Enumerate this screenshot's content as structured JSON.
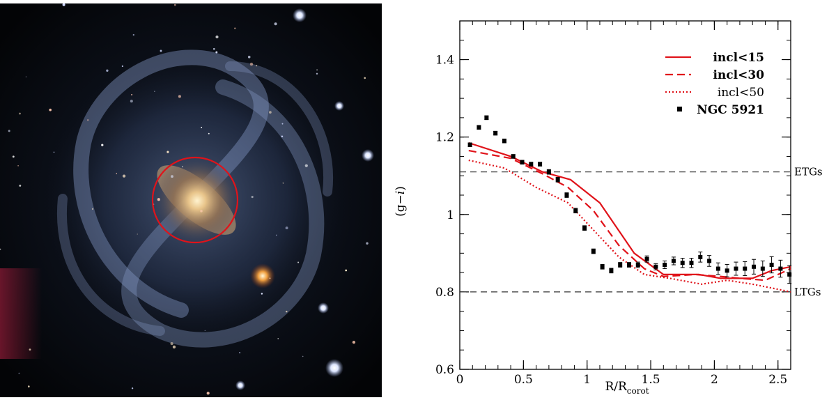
{
  "image": {
    "subject": "galaxy-photo",
    "marker_color": "#e0131a"
  },
  "chart_data": {
    "type": "line",
    "xlabel_main": "R/R",
    "xlabel_sub": "corot",
    "ylabel_main": "(g−",
    "ylabel_italic": "i",
    "ylabel_close": ")",
    "xlim": [
      0,
      2.6
    ],
    "ylim": [
      0.6,
      1.5
    ],
    "xticks": [
      {
        "v": 0,
        "label": "0"
      },
      {
        "v": 0.5,
        "label": "0.5"
      },
      {
        "v": 1,
        "label": "1"
      },
      {
        "v": 1.5,
        "label": "1.5"
      },
      {
        "v": 2,
        "label": "2"
      },
      {
        "v": 2.5,
        "label": "2.5"
      }
    ],
    "yticks": [
      {
        "v": 0.6,
        "label": "0.6"
      },
      {
        "v": 0.8,
        "label": "0.8"
      },
      {
        "v": 1.0,
        "label": "1"
      },
      {
        "v": 1.2,
        "label": "1.2"
      },
      {
        "v": 1.4,
        "label": "1.4"
      }
    ],
    "x_minor_step": 0.1,
    "y_minor_step": 0.05,
    "reference_lines": [
      {
        "y": 1.11,
        "label": "ETGs"
      },
      {
        "y": 0.8,
        "label": "LTGs"
      }
    ],
    "series": [
      {
        "name": "incl<15",
        "style": "solid",
        "color": "#e0131a",
        "x": [
          0.07,
          0.4,
          0.65,
          0.87,
          1.1,
          1.37,
          1.6,
          1.88,
          2.05,
          2.3,
          2.45,
          2.6
        ],
        "y": [
          1.185,
          1.15,
          1.11,
          1.09,
          1.03,
          0.9,
          0.845,
          0.845,
          0.835,
          0.835,
          0.855,
          0.865
        ]
      },
      {
        "name": "incl<30",
        "style": "dashed",
        "color": "#e0131a",
        "x": [
          0.07,
          0.4,
          0.65,
          0.85,
          1.05,
          1.25,
          1.45,
          1.6,
          1.85,
          2.05,
          2.2,
          2.4,
          2.6
        ],
        "y": [
          1.165,
          1.145,
          1.105,
          1.07,
          1.01,
          0.92,
          0.86,
          0.84,
          0.845,
          0.84,
          0.835,
          0.83,
          0.86
        ]
      },
      {
        "name": "incl<50",
        "style": "dotted",
        "color": "#e0131a",
        "x": [
          0.07,
          0.35,
          0.6,
          0.85,
          1.05,
          1.25,
          1.45,
          1.65,
          1.9,
          2.1,
          2.3,
          2.45,
          2.6
        ],
        "y": [
          1.14,
          1.12,
          1.07,
          1.03,
          0.96,
          0.89,
          0.845,
          0.835,
          0.82,
          0.83,
          0.82,
          0.81,
          0.8
        ]
      },
      {
        "name": "NGC 5921",
        "style": "points",
        "color": "#000000",
        "x": [
          0.08,
          0.15,
          0.21,
          0.28,
          0.35,
          0.42,
          0.49,
          0.56,
          0.63,
          0.7,
          0.77,
          0.84,
          0.91,
          0.98,
          1.05,
          1.12,
          1.19,
          1.26,
          1.33,
          1.4,
          1.47,
          1.54,
          1.61,
          1.68,
          1.75,
          1.82,
          1.89,
          1.96,
          2.03,
          2.1,
          2.17,
          2.24,
          2.31,
          2.38,
          2.45,
          2.52,
          2.59
        ],
        "y": [
          1.18,
          1.225,
          1.25,
          1.21,
          1.19,
          1.15,
          1.135,
          1.13,
          1.13,
          1.11,
          1.09,
          1.05,
          1.01,
          0.965,
          0.905,
          0.865,
          0.855,
          0.87,
          0.87,
          0.87,
          0.885,
          0.865,
          0.87,
          0.88,
          0.875,
          0.875,
          0.89,
          0.88,
          0.86,
          0.855,
          0.86,
          0.86,
          0.865,
          0.86,
          0.87,
          0.86,
          0.845
        ],
        "err": [
          0.005,
          0.005,
          0.005,
          0.005,
          0.005,
          0.005,
          0.005,
          0.005,
          0.005,
          0.006,
          0.006,
          0.006,
          0.006,
          0.006,
          0.006,
          0.006,
          0.006,
          0.006,
          0.006,
          0.007,
          0.008,
          0.008,
          0.01,
          0.01,
          0.012,
          0.012,
          0.013,
          0.014,
          0.015,
          0.016,
          0.017,
          0.018,
          0.019,
          0.02,
          0.021,
          0.022,
          0.023
        ]
      }
    ],
    "legend_position": "top-right"
  }
}
